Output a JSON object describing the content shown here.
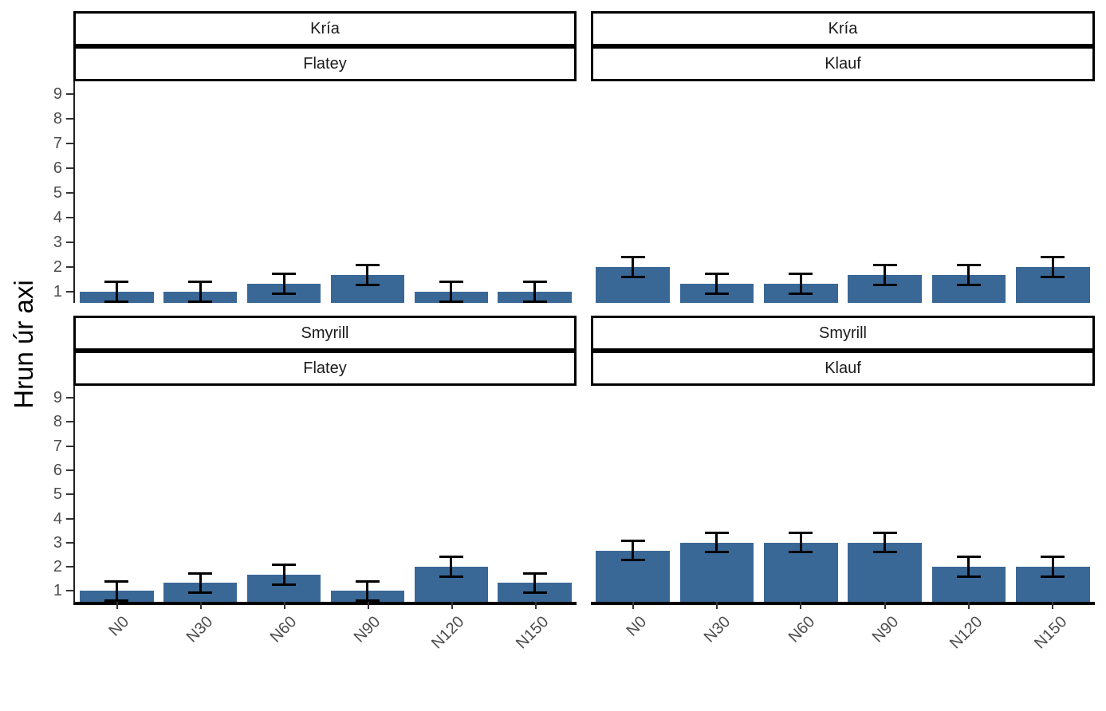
{
  "figure": {
    "ylabel": "Hrun úr axi",
    "background": "#ffffff"
  },
  "chart_data": {
    "type": "bar",
    "title": "",
    "xlabel": "",
    "ylabel": "Hrun úr axi",
    "categories": [
      "N0",
      "N30",
      "N60",
      "N90",
      "N120",
      "N150"
    ],
    "y_ticks": [
      1,
      2,
      3,
      4,
      5,
      6,
      7,
      8,
      9
    ],
    "ylim": [
      0.55,
      9.5
    ],
    "grid": false,
    "legend": "none",
    "bar_color": "#3a6896",
    "error_bar_color": "#000000",
    "axis_text_color": "#4d4d4d",
    "strip_text_color": "#1a1a1a",
    "faceting": {
      "row_labels": [
        "Kría",
        "Smyrill"
      ],
      "col_labels": [
        "Flatey",
        "Klauf"
      ]
    },
    "facets": [
      {
        "strip_top": "Kría",
        "strip_bottom": "Flatey",
        "row": 0,
        "col": 0,
        "values": [
          1.0,
          1.0,
          1.33,
          1.67,
          1.0,
          1.0
        ],
        "errors": [
          0.4,
          0.4,
          0.4,
          0.4,
          0.4,
          0.4
        ]
      },
      {
        "strip_top": "Kría",
        "strip_bottom": "Klauf",
        "row": 0,
        "col": 1,
        "values": [
          2.0,
          1.33,
          1.33,
          1.67,
          1.67,
          2.0
        ],
        "errors": [
          0.4,
          0.4,
          0.4,
          0.4,
          0.4,
          0.4
        ]
      },
      {
        "strip_top": "Smyrill",
        "strip_bottom": "Flatey",
        "row": 1,
        "col": 0,
        "values": [
          1.0,
          1.33,
          1.67,
          1.0,
          2.0,
          1.33
        ],
        "errors": [
          0.4,
          0.4,
          0.4,
          0.4,
          0.4,
          0.4
        ]
      },
      {
        "strip_top": "Smyrill",
        "strip_bottom": "Klauf",
        "row": 1,
        "col": 1,
        "values": [
          2.67,
          3.0,
          3.0,
          3.0,
          2.0,
          2.0
        ],
        "errors": [
          0.4,
          0.4,
          0.4,
          0.4,
          0.4,
          0.4
        ]
      }
    ]
  }
}
